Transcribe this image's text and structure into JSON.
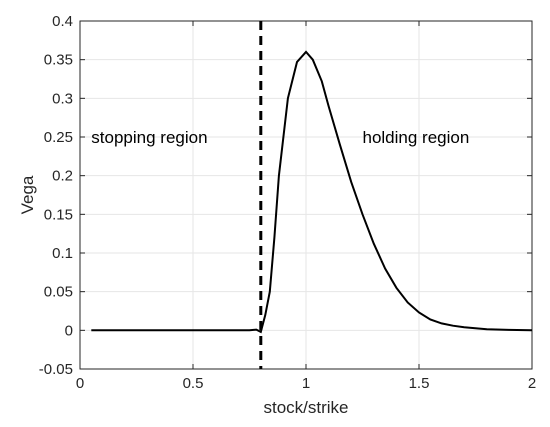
{
  "chart_data": {
    "type": "line",
    "xlabel": "stock/strike",
    "ylabel": "Vega",
    "xlim": [
      0,
      2
    ],
    "ylim": [
      -0.05,
      0.4
    ],
    "xticks": [
      "0",
      "0.5",
      "1",
      "1.5",
      "2"
    ],
    "yticks": [
      "-0.05",
      "0",
      "0.05",
      "0.1",
      "0.15",
      "0.2",
      "0.25",
      "0.3",
      "0.35",
      "0.4"
    ],
    "grid": true,
    "series": [
      {
        "x": [
          0.05,
          0.2,
          0.4,
          0.6,
          0.7,
          0.75,
          0.78,
          0.8,
          0.82,
          0.84,
          0.86,
          0.88,
          0.92,
          0.96,
          1.0,
          1.03,
          1.07,
          1.1,
          1.15,
          1.2,
          1.25,
          1.3,
          1.35,
          1.4,
          1.45,
          1.5,
          1.55,
          1.6,
          1.65,
          1.7,
          1.8,
          1.9,
          2.0
        ],
        "y": [
          0,
          0,
          0,
          0,
          0,
          0,
          0.001,
          -0.002,
          0.02,
          0.05,
          0.12,
          0.2,
          0.3,
          0.347,
          0.36,
          0.35,
          0.322,
          0.29,
          0.24,
          0.192,
          0.15,
          0.112,
          0.08,
          0.055,
          0.036,
          0.023,
          0.014,
          0.009,
          0.006,
          0.004,
          0.0015,
          0.0005,
          0.0002
        ]
      }
    ],
    "boundary_x": 0.8,
    "annotations": [
      {
        "text": "stopping region",
        "x": 0.05,
        "y": 0.25
      },
      {
        "text": "holding region",
        "x": 1.25,
        "y": 0.25
      }
    ]
  }
}
